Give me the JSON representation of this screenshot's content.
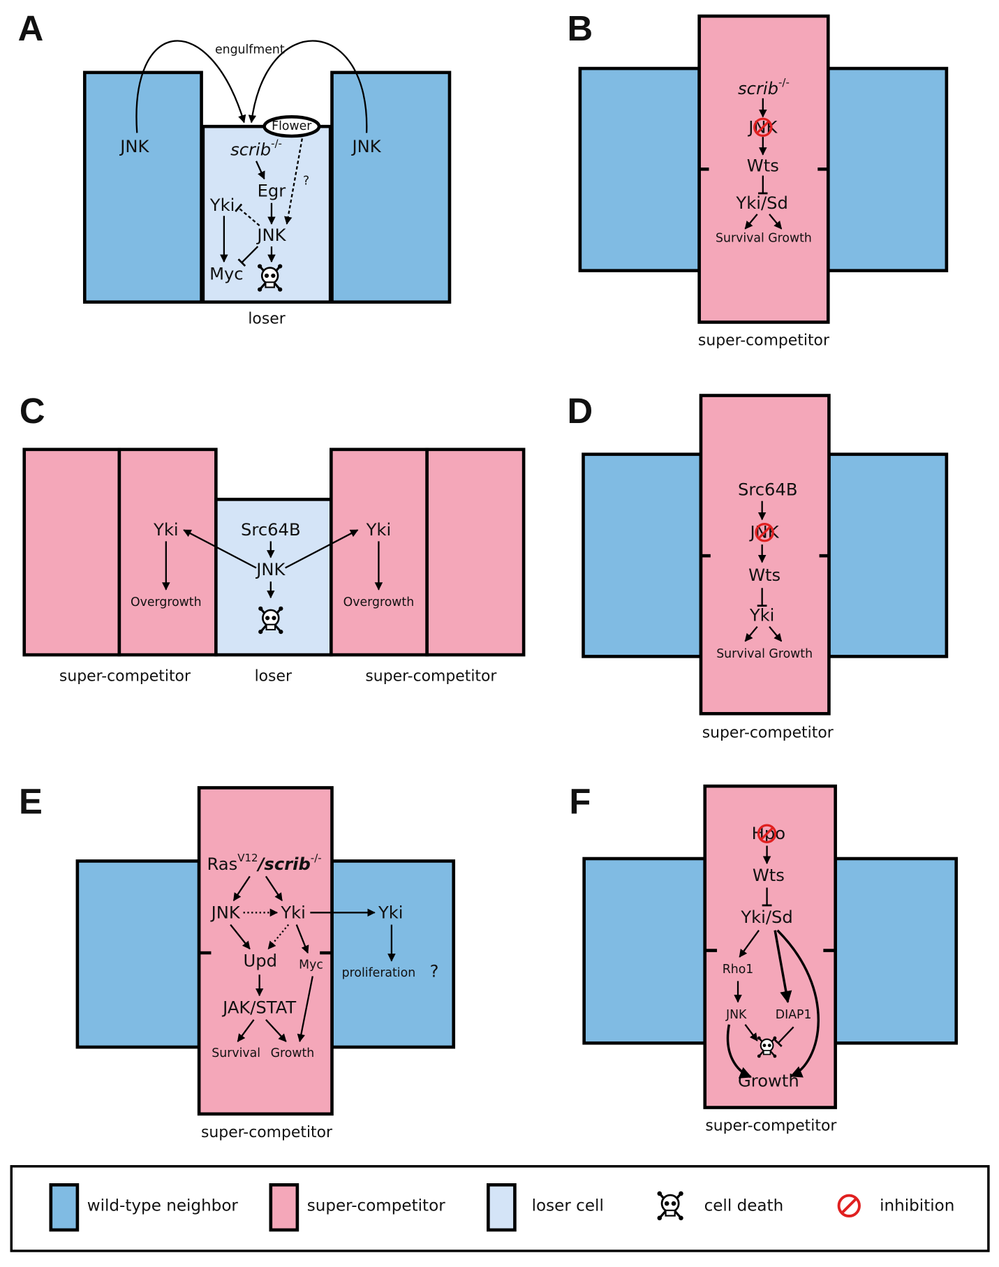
{
  "panels": [
    {
      "label": "A",
      "annotations": [
        "engulfment",
        "?"
      ],
      "nodes": [
        "JNK",
        "JNK",
        "Flower",
        {
          "text": "scrib",
          "sup": "-/-"
        },
        "Egr",
        "Yki",
        "JNK",
        "Myc"
      ],
      "captions": [
        "loser"
      ]
    },
    {
      "label": "B",
      "nodes": [
        {
          "text": "scrib",
          "sup": "-/-"
        },
        "JNK",
        "Wts",
        "Yki/Sd",
        "Survival Growth"
      ],
      "captions": [
        "super-competitor"
      ]
    },
    {
      "label": "C",
      "nodes": [
        "Yki",
        "Overgrowth",
        "Src64B",
        "JNK",
        "Yki",
        "Overgrowth"
      ],
      "captions": [
        "super-competitor",
        "loser",
        "super-competitor"
      ]
    },
    {
      "label": "D",
      "nodes": [
        "Src64B",
        "JNK",
        "Wts",
        "Yki",
        "Survival Growth"
      ],
      "captions": [
        "super-competitor"
      ]
    },
    {
      "label": "E",
      "annotations": [
        "?"
      ],
      "nodes": [
        {
          "text": "Ras",
          "sup": "V12"
        },
        {
          "text": "/scrib",
          "sup": "-/-"
        },
        "JNK",
        "Yki",
        "Yki",
        "Upd",
        "Myc",
        "proliferation",
        "JAK/STAT",
        "Survival",
        "Growth"
      ],
      "captions": [
        "super-competitor"
      ]
    },
    {
      "label": "F",
      "nodes": [
        "Hpo",
        "Wts",
        "Yki/Sd",
        "Rho1",
        "JNK",
        "DIAP1",
        "Growth"
      ],
      "captions": [
        "super-competitor"
      ]
    }
  ],
  "legend": [
    "wild-type neighbor",
    "super-competitor",
    "loser cell",
    "cell death",
    "inhibition"
  ]
}
